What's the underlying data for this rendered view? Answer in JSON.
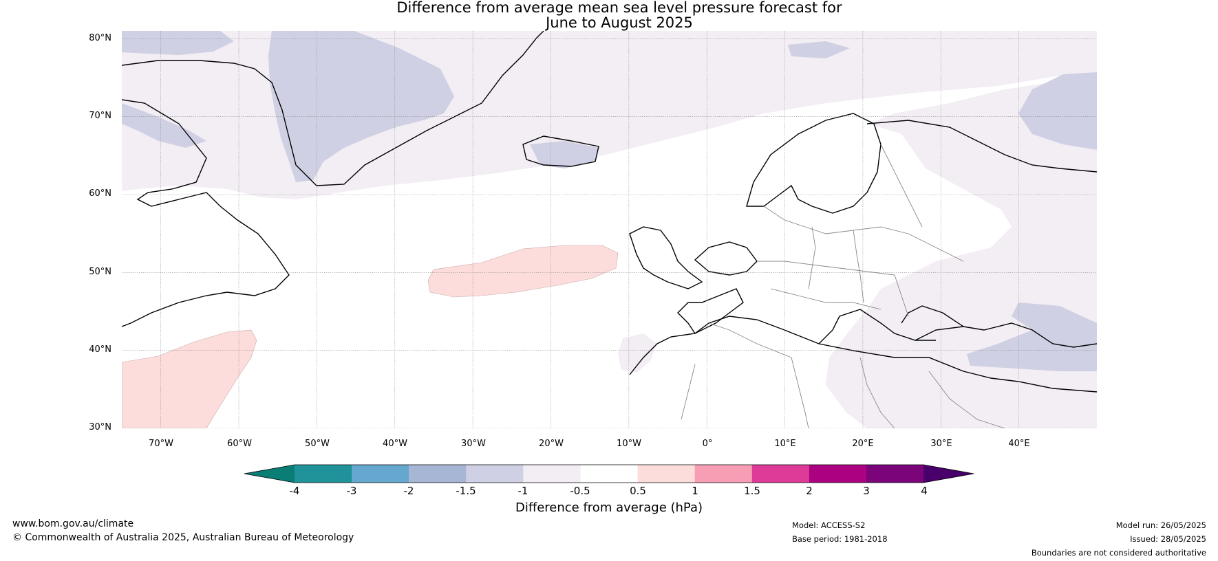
{
  "title": {
    "line1": "Difference from average mean sea level pressure forecast for",
    "line2": "June to August 2025"
  },
  "lat_labels": [
    "80°N",
    "70°N",
    "60°N",
    "50°N",
    "40°N",
    "30°N"
  ],
  "lon_labels": [
    "70°W",
    "60°W",
    "50°W",
    "40°W",
    "30°W",
    "20°W",
    "10°W",
    "0°",
    "10°E",
    "20°E",
    "30°E",
    "40°E"
  ],
  "map_extent": {
    "lon_min": -75,
    "lon_max": 50,
    "lat_min": 30,
    "lat_max": 81
  },
  "colorbar": {
    "ticks": [
      "-4",
      "-3",
      "-2",
      "-1.5",
      "-1",
      "-0.5",
      "0.5",
      "1",
      "1.5",
      "2",
      "3",
      "4"
    ],
    "colors": [
      "#0a7d74",
      "#1f9399",
      "#66a7cf",
      "#a7b6d5",
      "#cfd0e3",
      "#f3edf4",
      "#ffffff",
      "#fddcdc",
      "#f89eb4",
      "#dd3b97",
      "#ac0180",
      "#7b047a",
      "#4a006a"
    ],
    "label": "Difference from average (hPa)"
  },
  "footer": {
    "website": "www.bom.gov.au/climate",
    "copyright": "© Commonwealth of Australia 2025, Australian Bureau of Meteorology",
    "model": "Model: ACCESS-S2",
    "base_period": "Base period: 1981-2018",
    "model_run": "Model run: 26/05/2025",
    "issued": "Issued: 28/05/2025",
    "disclaimer": "Boundaries are not considered authoritative"
  }
}
